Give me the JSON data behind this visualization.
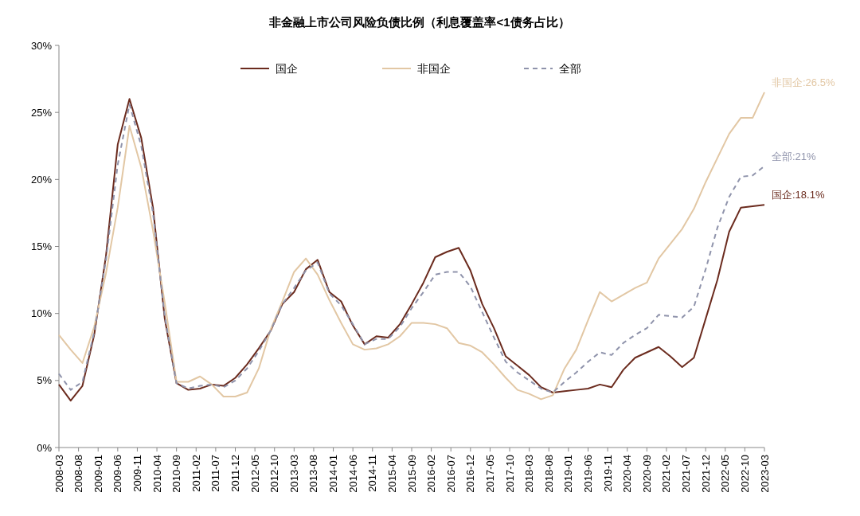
{
  "chart_data": {
    "type": "line",
    "title": "非金融上市公司风险负债比例（利息覆盖率<1债务占比）",
    "x": [
      "2008-03",
      "2008-06",
      "2008-09",
      "2008-12",
      "2009-03",
      "2009-06",
      "2009-09",
      "2009-12",
      "2010-03",
      "2010-06",
      "2010-09",
      "2010-12",
      "2011-03",
      "2011-06",
      "2011-09",
      "2011-12",
      "2012-03",
      "2012-06",
      "2012-09",
      "2012-12",
      "2013-03",
      "2013-06",
      "2013-09",
      "2013-12",
      "2014-03",
      "2014-06",
      "2014-09",
      "2014-12",
      "2015-03",
      "2015-06",
      "2015-09",
      "2015-12",
      "2016-03",
      "2016-06",
      "2016-09",
      "2016-12",
      "2017-03",
      "2017-06",
      "2017-09",
      "2017-12",
      "2018-03",
      "2018-06",
      "2018-09",
      "2018-12",
      "2019-03",
      "2019-06",
      "2019-09",
      "2019-12",
      "2020-03",
      "2020-06",
      "2020-09",
      "2020-12",
      "2021-03",
      "2021-06",
      "2021-09",
      "2021-12",
      "2022-03",
      "2022-06",
      "2022-09",
      "2022-12",
      "2023-03"
    ],
    "series": [
      {
        "name": "国企",
        "color": "#6b2b1e",
        "line_style": "solid",
        "values": [
          4.7,
          3.5,
          4.6,
          8.4,
          14.3,
          22.6,
          26.0,
          23.1,
          17.9,
          9.6,
          4.8,
          4.3,
          4.4,
          4.7,
          4.6,
          5.2,
          6.2,
          7.4,
          8.7,
          10.7,
          11.6,
          13.3,
          14.0,
          11.6,
          10.9,
          9.1,
          7.7,
          8.3,
          8.2,
          9.2,
          10.7,
          12.3,
          14.2,
          14.6,
          14.9,
          13.2,
          10.7,
          8.9,
          6.8,
          6.1,
          5.4,
          4.5,
          4.1,
          4.2,
          4.3,
          4.4,
          4.7,
          4.5,
          5.8,
          6.7,
          7.1,
          7.5,
          6.8,
          6.0,
          6.7,
          9.6,
          12.5,
          16.1,
          17.9,
          18.0,
          18.1
        ]
      },
      {
        "name": "非国企",
        "color": "#e2c7a4",
        "line_style": "solid",
        "values": [
          8.4,
          7.3,
          6.3,
          9.0,
          13.0,
          17.9,
          24.0,
          20.9,
          16.2,
          10.8,
          4.9,
          4.9,
          5.3,
          4.7,
          3.8,
          3.8,
          4.1,
          5.9,
          8.8,
          10.9,
          13.1,
          14.1,
          12.9,
          11.0,
          9.3,
          7.7,
          7.3,
          7.4,
          7.7,
          8.3,
          9.3,
          9.3,
          9.2,
          8.9,
          7.8,
          7.6,
          7.1,
          6.2,
          5.2,
          4.3,
          4.0,
          3.6,
          3.9,
          5.9,
          7.3,
          9.5,
          11.6,
          10.9,
          11.4,
          11.9,
          12.3,
          14.1,
          15.2,
          16.3,
          17.8,
          19.8,
          21.6,
          23.4,
          24.6,
          24.6,
          26.5
        ]
      },
      {
        "name": "全部",
        "color": "#8f93ab",
        "line_style": "dashed",
        "values": [
          5.5,
          4.3,
          4.9,
          8.6,
          14.0,
          21.1,
          25.6,
          22.5,
          17.5,
          9.8,
          4.8,
          4.4,
          4.6,
          4.7,
          4.5,
          5.0,
          5.9,
          7.2,
          8.7,
          10.7,
          11.9,
          13.2,
          13.8,
          11.5,
          10.6,
          9.2,
          7.7,
          8.1,
          8.1,
          9.0,
          10.4,
          11.6,
          12.9,
          13.1,
          13.1,
          12.0,
          10.1,
          8.2,
          6.4,
          5.6,
          5.0,
          4.4,
          4.1,
          4.9,
          5.6,
          6.4,
          7.1,
          6.9,
          7.8,
          8.4,
          8.9,
          9.9,
          9.8,
          9.7,
          10.5,
          13.3,
          16.4,
          18.7,
          20.2,
          20.3,
          21.0
        ]
      }
    ],
    "annotations": [
      {
        "text": "非国企:26.5%",
        "x": "2023-03",
        "y": 26.5
      },
      {
        "text": "全部:21%",
        "x": "2023-03",
        "y": 21.0
      },
      {
        "text": "国企:18.1%",
        "x": "2023-03",
        "y": 18.1
      }
    ],
    "xlim": [
      "2008-03",
      "2023-03"
    ],
    "xticks": [
      "2008-03",
      "2008-08",
      "2009-01",
      "2009-06",
      "2009-11",
      "2010-04",
      "2010-09",
      "2011-02",
      "2011-07",
      "2011-12",
      "2012-05",
      "2012-10",
      "2013-03",
      "2013-08",
      "2014-01",
      "2014-06",
      "2014-11",
      "2015-04",
      "2015-09",
      "2016-02",
      "2016-07",
      "2016-12",
      "2017-05",
      "2017-10",
      "2018-03",
      "2018-08",
      "2019-01",
      "2019-06",
      "2019-11",
      "2020-04",
      "2020-09",
      "2021-02",
      "2021-07",
      "2021-12",
      "2022-05",
      "2022-10",
      "2023-03"
    ],
    "ylim": [
      0,
      30
    ],
    "yticks": [
      {
        "value": 0,
        "label": "0%"
      },
      {
        "value": 5,
        "label": "5%"
      },
      {
        "value": 10,
        "label": "10%"
      },
      {
        "value": 15,
        "label": "15%"
      },
      {
        "value": 20,
        "label": "20%"
      },
      {
        "value": 25,
        "label": "25%"
      },
      {
        "value": 30,
        "label": "30%"
      }
    ],
    "legend": "top",
    "grid": false,
    "marker": "none"
  }
}
